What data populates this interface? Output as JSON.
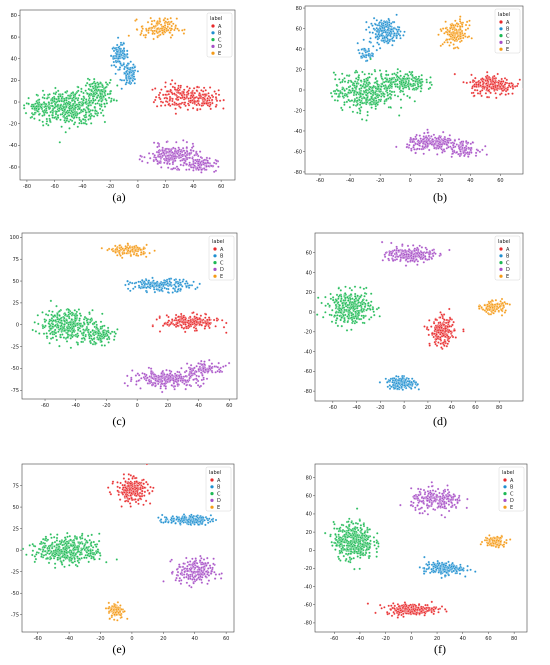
{
  "legend": {
    "title": "label",
    "items": [
      {
        "label": "A",
        "color": "#e8292b"
      },
      {
        "label": "B",
        "color": "#1f8fd0"
      },
      {
        "label": "C",
        "color": "#1db954"
      },
      {
        "label": "D",
        "color": "#a64fc6"
      },
      {
        "label": "E",
        "color": "#f49a16"
      }
    ]
  },
  "chart_data": [
    {
      "type": "scatter",
      "caption": "(a)",
      "xlim": [
        -85,
        70
      ],
      "ylim": [
        -72,
        85
      ],
      "xticks": [
        -80,
        -60,
        -40,
        -20,
        0,
        20,
        40,
        60
      ],
      "yticks": [
        -60,
        -40,
        -20,
        0,
        20,
        40,
        60,
        80
      ],
      "clusters": [
        {
          "label": "A",
          "blobs": [
            [
              30,
              5,
              17,
              12,
              40
            ],
            [
              48,
              3,
              10,
              9,
              25
            ]
          ]
        },
        {
          "label": "B",
          "blobs": [
            [
              -13,
              43,
              6,
              10,
              30
            ],
            [
              -6,
              25,
              5,
              10,
              25
            ]
          ]
        },
        {
          "label": "C",
          "blobs": [
            [
              -50,
              -5,
              22,
              16,
              110
            ],
            [
              -28,
              8,
              10,
              12,
              40
            ],
            [
              -70,
              -5,
              10,
              6,
              20
            ]
          ]
        },
        {
          "label": "D",
          "blobs": [
            [
              25,
              -50,
              18,
              10,
              60
            ],
            [
              45,
              -58,
              12,
              6,
              25
            ]
          ]
        },
        {
          "label": "E",
          "blobs": [
            [
              15,
              68,
              13,
              9,
              35
            ]
          ]
        }
      ]
    },
    {
      "type": "scatter",
      "caption": "(b)",
      "xlim": [
        -70,
        75
      ],
      "ylim": [
        -82,
        82
      ],
      "xticks": [
        -60,
        -40,
        -20,
        0,
        20,
        40,
        60
      ],
      "yticks": [
        -80,
        -60,
        -40,
        -20,
        0,
        20,
        40,
        60,
        80
      ],
      "clusters": [
        {
          "label": "A",
          "blobs": [
            [
              55,
              5,
              15,
              10,
              60
            ]
          ]
        },
        {
          "label": "B",
          "blobs": [
            [
              -17,
              57,
              10,
              12,
              50
            ],
            [
              -30,
              35,
              5,
              6,
              10
            ]
          ]
        },
        {
          "label": "C",
          "blobs": [
            [
              -30,
              -2,
              20,
              18,
              100
            ],
            [
              -5,
              8,
              15,
              10,
              50
            ]
          ]
        },
        {
          "label": "D",
          "blobs": [
            [
              15,
              -52,
              17,
              8,
              60
            ],
            [
              35,
              -57,
              10,
              7,
              25
            ]
          ]
        },
        {
          "label": "E",
          "blobs": [
            [
              30,
              55,
              8,
              12,
              40
            ]
          ]
        }
      ]
    },
    {
      "type": "scatter",
      "caption": "(c)",
      "xlim": [
        -75,
        65
      ],
      "ylim": [
        -85,
        105
      ],
      "xticks": [
        -60,
        -40,
        -20,
        0,
        20,
        40,
        60
      ],
      "yticks": [
        -75,
        -50,
        -25,
        0,
        25,
        50,
        75,
        100
      ],
      "clusters": [
        {
          "label": "A",
          "blobs": [
            [
              35,
              3,
              18,
              8,
              60
            ]
          ]
        },
        {
          "label": "B",
          "blobs": [
            [
              15,
              45,
              20,
              7,
              50
            ]
          ]
        },
        {
          "label": "C",
          "blobs": [
            [
              -45,
              0,
              18,
              18,
              90
            ],
            [
              -25,
              -12,
              10,
              10,
              30
            ]
          ]
        },
        {
          "label": "D",
          "blobs": [
            [
              20,
              -62,
              22,
              9,
              70
            ],
            [
              45,
              -50,
              12,
              7,
              25
            ]
          ]
        },
        {
          "label": "E",
          "blobs": [
            [
              -5,
              85,
              12,
              6,
              35
            ]
          ]
        }
      ]
    },
    {
      "type": "scatter",
      "caption": "(d)",
      "xlim": [
        -75,
        100
      ],
      "ylim": [
        -90,
        80
      ],
      "xticks": [
        -60,
        -40,
        -20,
        0,
        20,
        40,
        60,
        80
      ],
      "yticks": [
        -80,
        -60,
        -40,
        -20,
        0,
        20,
        40,
        60
      ],
      "clusters": [
        {
          "label": "A",
          "blobs": [
            [
              32,
              -20,
              10,
              14,
              60
            ]
          ]
        },
        {
          "label": "B",
          "blobs": [
            [
              -2,
              -72,
              12,
              6,
              45
            ]
          ]
        },
        {
          "label": "C",
          "blobs": [
            [
              -45,
              5,
              18,
              16,
              90
            ]
          ]
        },
        {
          "label": "D",
          "blobs": [
            [
              5,
              58,
              20,
              8,
              60
            ]
          ]
        },
        {
          "label": "E",
          "blobs": [
            [
              75,
              5,
              10,
              6,
              35
            ]
          ]
        }
      ]
    },
    {
      "type": "scatter",
      "caption": "(e)",
      "xlim": [
        -70,
        65
      ],
      "ylim": [
        -95,
        100
      ],
      "xticks": [
        -60,
        -40,
        -20,
        0,
        20,
        40,
        60
      ],
      "yticks": [
        -75,
        -50,
        -25,
        0,
        25,
        50,
        75
      ],
      "clusters": [
        {
          "label": "A",
          "blobs": [
            [
              0,
              70,
              10,
              14,
              60
            ]
          ]
        },
        {
          "label": "B",
          "blobs": [
            [
              35,
              35,
              15,
              5,
              45
            ]
          ]
        },
        {
          "label": "C",
          "blobs": [
            [
              -40,
              0,
              20,
              16,
              110
            ]
          ]
        },
        {
          "label": "D",
          "blobs": [
            [
              40,
              -25,
              12,
              15,
              55
            ]
          ]
        },
        {
          "label": "E",
          "blobs": [
            [
              -10,
              -70,
              5,
              9,
              30
            ]
          ]
        }
      ]
    },
    {
      "type": "scatter",
      "caption": "(f)",
      "xlim": [
        -75,
        90
      ],
      "ylim": [
        -90,
        95
      ],
      "xticks": [
        -60,
        -40,
        -20,
        0,
        20,
        40,
        60,
        80
      ],
      "yticks": [
        -80,
        -60,
        -40,
        -20,
        0,
        20,
        40,
        60,
        80
      ],
      "clusters": [
        {
          "label": "A",
          "blobs": [
            [
              0,
              -65,
              20,
              6,
              60
            ]
          ]
        },
        {
          "label": "B",
          "blobs": [
            [
              25,
              -20,
              15,
              7,
              50
            ]
          ]
        },
        {
          "label": "C",
          "blobs": [
            [
              -45,
              10,
              15,
              20,
              110
            ]
          ]
        },
        {
          "label": "D",
          "blobs": [
            [
              20,
              55,
              20,
              12,
              60
            ]
          ]
        },
        {
          "label": "E",
          "blobs": [
            [
              65,
              10,
              8,
              6,
              30
            ]
          ]
        }
      ]
    }
  ]
}
